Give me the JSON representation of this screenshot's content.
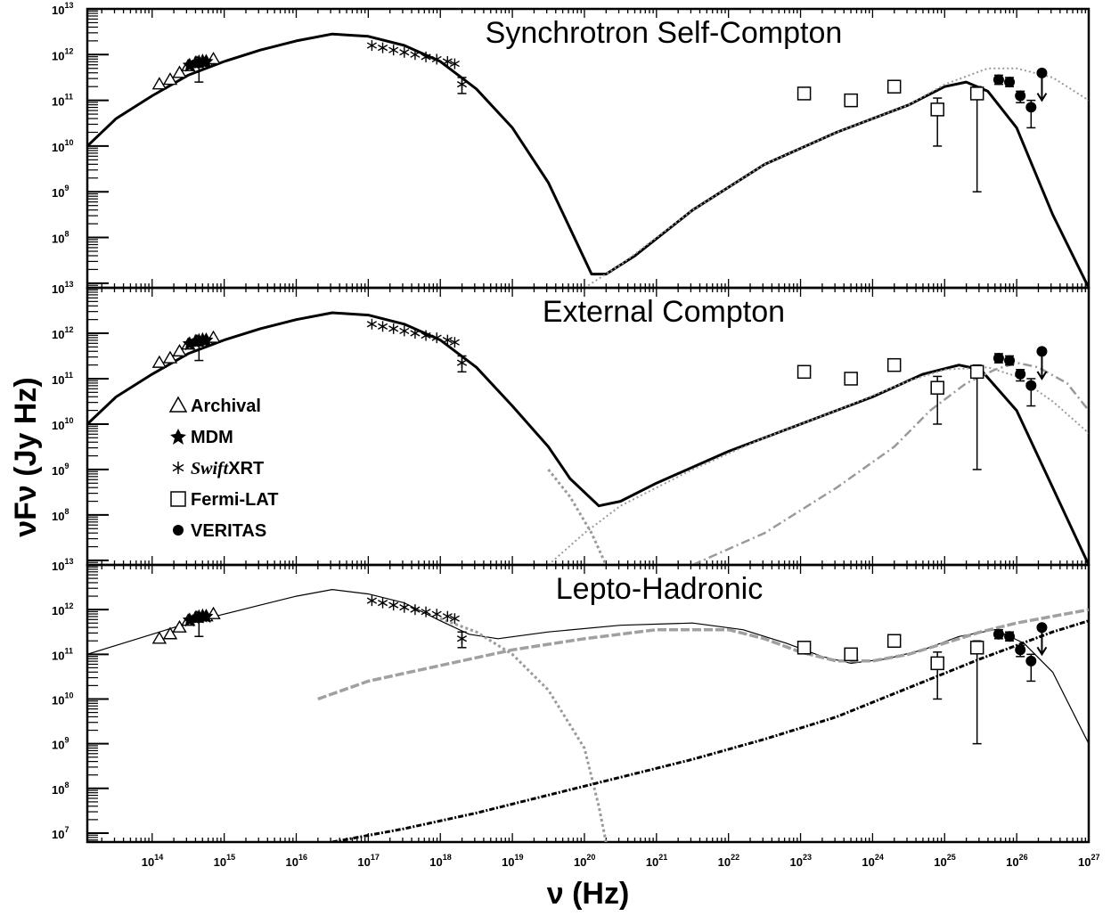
{
  "chart_data": {
    "type": "line",
    "x_axis": {
      "label": "ν (Hz)",
      "scale": "log",
      "range_log10": [
        13.1,
        27
      ],
      "ticks_log10": [
        14,
        15,
        16,
        17,
        18,
        19,
        20,
        21,
        22,
        23,
        24,
        25,
        26,
        27
      ],
      "tick_base": "10"
    },
    "y_axis": {
      "label": "νFν (Jy Hz)",
      "scale": "log",
      "tick_base": "10"
    },
    "legend": {
      "placement": "middle-panel-left",
      "entries": [
        {
          "marker": "triangle-open",
          "label": "Archival",
          "italic_prefix": ""
        },
        {
          "marker": "star-filled",
          "label": "MDM",
          "italic_prefix": ""
        },
        {
          "marker": "asterisk",
          "label": "XRT",
          "italic_prefix": "Swift"
        },
        {
          "marker": "square-open",
          "label": "Fermi-LAT",
          "italic_prefix": ""
        },
        {
          "marker": "circle-filled",
          "label": "VERITAS",
          "italic_prefix": ""
        }
      ]
    },
    "observations": {
      "archival_triangles": [
        [
          14.1,
          11.35
        ],
        [
          14.25,
          11.45
        ],
        [
          14.38,
          11.6
        ],
        [
          14.5,
          11.75
        ],
        [
          14.62,
          11.82
        ],
        [
          14.75,
          11.85
        ],
        [
          14.85,
          11.9
        ]
      ],
      "mdm_stars": [
        [
          14.52,
          11.78
        ],
        [
          14.6,
          11.83
        ],
        [
          14.65,
          11.85
        ],
        [
          14.7,
          11.87
        ],
        [
          14.75,
          11.86
        ]
      ],
      "mdm_errorbar": {
        "x": 14.65,
        "y": 11.55,
        "lo": 11.4,
        "hi": 11.75
      },
      "swift_xrt_asterisks": [
        [
          17.05,
          12.2
        ],
        [
          17.2,
          12.15
        ],
        [
          17.35,
          12.1
        ],
        [
          17.5,
          12.05
        ],
        [
          17.65,
          12.0
        ],
        [
          17.8,
          11.95
        ],
        [
          17.95,
          11.9
        ],
        [
          18.1,
          11.85
        ],
        [
          18.2,
          11.8
        ]
      ],
      "swift_xrt_errorbar": {
        "x": 18.3,
        "y": 11.35,
        "lo": 11.15,
        "hi": 11.5
      },
      "fermi_lat_squares": [
        {
          "x": 23.05,
          "y": 11.15,
          "lo": 11.05,
          "hi": 11.25
        },
        {
          "x": 23.7,
          "y": 11.0,
          "lo": 10.9,
          "hi": 11.1
        },
        {
          "x": 24.3,
          "y": 11.3,
          "lo": 11.2,
          "hi": 11.35
        },
        {
          "x": 24.9,
          "y": 10.8,
          "lo": 10.0,
          "hi": 11.05
        },
        {
          "x": 25.45,
          "y": 11.15,
          "lo": 9.0,
          "hi": 11.3
        }
      ],
      "veritas_circles": [
        {
          "x": 25.75,
          "y": 11.45,
          "lo": 11.35,
          "hi": 11.55
        },
        {
          "x": 25.9,
          "y": 11.4,
          "lo": 11.3,
          "hi": 11.5
        },
        {
          "x": 26.05,
          "y": 11.1,
          "lo": 10.95,
          "hi": 11.2
        },
        {
          "x": 26.2,
          "y": 10.85,
          "lo": 10.4,
          "hi": 11.0
        }
      ],
      "veritas_upper_limit": {
        "x": 26.35,
        "y": 11.6,
        "arrow_to": 11.0
      }
    },
    "panels": [
      {
        "title": "Synchrotron Self-Compton",
        "ylim_log10": [
          6.9,
          13
        ],
        "ytick_exps": [
          "8",
          "9",
          "10",
          "11",
          "12",
          "13"
        ],
        "ytick_values": [
          8,
          9,
          10,
          11,
          12,
          13
        ],
        "series": [
          {
            "style": "solid-black",
            "points": [
              [
                13.1,
                10.0
              ],
              [
                13.5,
                10.6
              ],
              [
                14.0,
                11.1
              ],
              [
                14.5,
                11.55
              ],
              [
                15.0,
                11.85
              ],
              [
                15.5,
                12.1
              ],
              [
                16.0,
                12.3
              ],
              [
                16.5,
                12.45
              ],
              [
                17.0,
                12.4
              ],
              [
                17.5,
                12.2
              ],
              [
                18.0,
                11.85
              ],
              [
                18.5,
                11.25
              ],
              [
                19.0,
                10.4
              ],
              [
                19.5,
                9.2
              ],
              [
                19.8,
                8.2
              ],
              [
                20.1,
                7.2
              ],
              [
                20.3,
                7.2
              ],
              [
                20.7,
                7.6
              ],
              [
                21.5,
                8.6
              ],
              [
                22.5,
                9.6
              ],
              [
                23.5,
                10.3
              ],
              [
                24.5,
                10.9
              ],
              [
                25.0,
                11.3
              ],
              [
                25.3,
                11.4
              ],
              [
                25.6,
                11.2
              ],
              [
                26.0,
                10.4
              ],
              [
                26.5,
                8.5
              ],
              [
                27.0,
                6.9
              ]
            ]
          },
          {
            "style": "dotted-grey",
            "points": [
              [
                20.0,
                6.9
              ],
              [
                20.5,
                7.4
              ],
              [
                21.5,
                8.6
              ],
              [
                22.5,
                9.6
              ],
              [
                23.5,
                10.3
              ],
              [
                24.5,
                10.9
              ],
              [
                25.0,
                11.35
              ],
              [
                25.6,
                11.7
              ],
              [
                26.0,
                11.7
              ],
              [
                26.5,
                11.5
              ],
              [
                27.0,
                11.0
              ]
            ]
          }
        ]
      },
      {
        "title": "External Compton",
        "ylim_log10": [
          6.9,
          13
        ],
        "ytick_exps": [
          "8",
          "9",
          "10",
          "11",
          "12",
          "13"
        ],
        "ytick_values": [
          8,
          9,
          10,
          11,
          12,
          13
        ],
        "series": [
          {
            "style": "solid-black",
            "points": [
              [
                13.1,
                10.0
              ],
              [
                13.5,
                10.6
              ],
              [
                14.0,
                11.1
              ],
              [
                14.5,
                11.55
              ],
              [
                15.0,
                11.85
              ],
              [
                15.5,
                12.1
              ],
              [
                16.0,
                12.3
              ],
              [
                16.5,
                12.45
              ],
              [
                17.0,
                12.4
              ],
              [
                17.5,
                12.2
              ],
              [
                18.0,
                11.85
              ],
              [
                18.5,
                11.25
              ],
              [
                19.0,
                10.4
              ],
              [
                19.5,
                9.5
              ],
              [
                19.8,
                8.8
              ],
              [
                20.2,
                8.2
              ],
              [
                20.5,
                8.3
              ],
              [
                21.0,
                8.7
              ],
              [
                22.0,
                9.4
              ],
              [
                23.0,
                10.0
              ],
              [
                24.0,
                10.6
              ],
              [
                24.7,
                11.1
              ],
              [
                25.2,
                11.3
              ],
              [
                25.5,
                11.2
              ],
              [
                26.0,
                10.3
              ],
              [
                26.5,
                8.6
              ],
              [
                27.0,
                6.9
              ]
            ]
          },
          {
            "style": "dotted-grey",
            "points": [
              [
                19.5,
                6.9
              ],
              [
                20.0,
                7.6
              ],
              [
                20.5,
                8.2
              ],
              [
                21.5,
                9.0
              ],
              [
                22.5,
                9.7
              ],
              [
                23.5,
                10.3
              ],
              [
                24.5,
                10.95
              ],
              [
                25.0,
                11.2
              ],
              [
                25.6,
                11.25
              ],
              [
                26.0,
                11.05
              ],
              [
                26.5,
                10.5
              ],
              [
                27.0,
                9.8
              ]
            ]
          },
          {
            "style": "dotdash-grey",
            "points": [
              [
                21.5,
                6.9
              ],
              [
                22.5,
                7.6
              ],
              [
                23.5,
                8.6
              ],
              [
                24.3,
                9.5
              ],
              [
                24.8,
                10.3
              ],
              [
                25.3,
                10.9
              ],
              [
                25.7,
                11.2
              ],
              [
                26.0,
                11.35
              ],
              [
                26.3,
                11.25
              ],
              [
                26.7,
                10.9
              ],
              [
                27.0,
                10.3
              ]
            ]
          },
          {
            "style": "dotted-grey-sync",
            "points": [
              [
                19.5,
                9.0
              ],
              [
                19.8,
                8.4
              ],
              [
                20.1,
                7.6
              ],
              [
                20.3,
                6.9
              ]
            ]
          }
        ]
      },
      {
        "title": "Lepto-Hadronic",
        "ylim_log10": [
          6.8,
          13
        ],
        "ytick_exps": [
          "7",
          "8",
          "9",
          "10",
          "11",
          "12",
          "13"
        ],
        "ytick_values": [
          7,
          8,
          9,
          10,
          11,
          12,
          13
        ],
        "series": [
          {
            "style": "thin-black",
            "points": [
              [
                13.1,
                11.0
              ],
              [
                13.5,
                11.2
              ],
              [
                14.0,
                11.45
              ],
              [
                14.5,
                11.7
              ],
              [
                15.0,
                11.9
              ],
              [
                15.5,
                12.1
              ],
              [
                16.0,
                12.3
              ],
              [
                16.5,
                12.45
              ],
              [
                17.0,
                12.35
              ],
              [
                17.5,
                12.15
              ],
              [
                18.0,
                11.75
              ],
              [
                18.4,
                11.45
              ],
              [
                18.8,
                11.35
              ],
              [
                19.5,
                11.5
              ],
              [
                20.5,
                11.65
              ],
              [
                21.5,
                11.7
              ],
              [
                22.2,
                11.55
              ],
              [
                22.8,
                11.25
              ],
              [
                23.3,
                10.95
              ],
              [
                23.7,
                10.8
              ],
              [
                24.2,
                10.9
              ],
              [
                24.7,
                11.1
              ],
              [
                25.2,
                11.4
              ],
              [
                25.7,
                11.55
              ],
              [
                26.1,
                11.25
              ],
              [
                26.5,
                10.6
              ],
              [
                27.0,
                9.0
              ]
            ]
          },
          {
            "style": "dashed-grey",
            "points": [
              [
                16.3,
                10.0
              ],
              [
                17.0,
                10.4
              ],
              [
                18.0,
                10.75
              ],
              [
                19.0,
                11.1
              ],
              [
                20.0,
                11.35
              ],
              [
                21.0,
                11.55
              ],
              [
                22.0,
                11.55
              ],
              [
                22.5,
                11.35
              ],
              [
                23.0,
                11.05
              ],
              [
                23.5,
                10.85
              ],
              [
                24.0,
                10.85
              ],
              [
                24.5,
                11.0
              ],
              [
                25.0,
                11.25
              ],
              [
                25.5,
                11.5
              ],
              [
                26.0,
                11.7
              ],
              [
                26.5,
                11.85
              ],
              [
                27.0,
                12.0
              ]
            ]
          },
          {
            "style": "dotted-grey-sync",
            "points": [
              [
                18.0,
                11.8
              ],
              [
                18.5,
                11.5
              ],
              [
                19.0,
                11.0
              ],
              [
                19.5,
                10.2
              ],
              [
                20.0,
                8.9
              ],
              [
                20.2,
                7.6
              ],
              [
                20.3,
                6.8
              ]
            ]
          },
          {
            "style": "dotdash-black",
            "points": [
              [
                16.5,
                6.8
              ],
              [
                17.5,
                7.1
              ],
              [
                18.5,
                7.45
              ],
              [
                19.5,
                7.85
              ],
              [
                20.5,
                8.25
              ],
              [
                21.5,
                8.65
              ],
              [
                22.5,
                9.1
              ],
              [
                23.5,
                9.6
              ],
              [
                24.5,
                10.25
              ],
              [
                25.5,
                10.9
              ],
              [
                26.5,
                11.5
              ],
              [
                27.0,
                11.75
              ]
            ]
          }
        ]
      }
    ]
  }
}
